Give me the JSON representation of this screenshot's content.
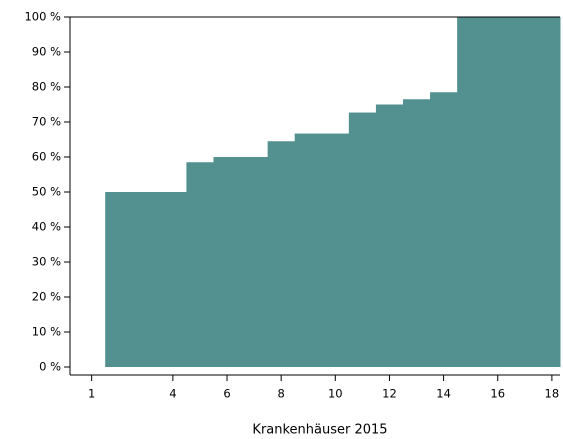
{
  "chart_data": {
    "type": "step-area",
    "x_label": "Krankenhäuser 2015",
    "x": [
      1.5,
      4.5,
      5.5,
      7.5,
      8.5,
      10.5,
      11.5,
      12.5,
      13.5,
      14.5
    ],
    "values": [
      50,
      58.5,
      60,
      64.5,
      66.7,
      72.7,
      75,
      76.5,
      78.5,
      100
    ],
    "color": "#529190",
    "xlim": [
      0.2,
      18.3
    ],
    "xticks": [
      1,
      4,
      6,
      8,
      10,
      12,
      14,
      16,
      18
    ],
    "ylim": [
      0,
      100
    ],
    "yticks": [
      {
        "value": 0,
        "label": "0 %"
      },
      {
        "value": 10,
        "label": "10 %"
      },
      {
        "value": 20,
        "label": "20 %"
      },
      {
        "value": 30,
        "label": "30 %"
      },
      {
        "value": 40,
        "label": "40 %"
      },
      {
        "value": 50,
        "label": "50 %"
      },
      {
        "value": 60,
        "label": "60 %"
      },
      {
        "value": 70,
        "label": "70 %"
      },
      {
        "value": 80,
        "label": "80 %"
      },
      {
        "value": 90,
        "label": "90 %"
      },
      {
        "value": 100,
        "label": "100 %"
      }
    ]
  }
}
